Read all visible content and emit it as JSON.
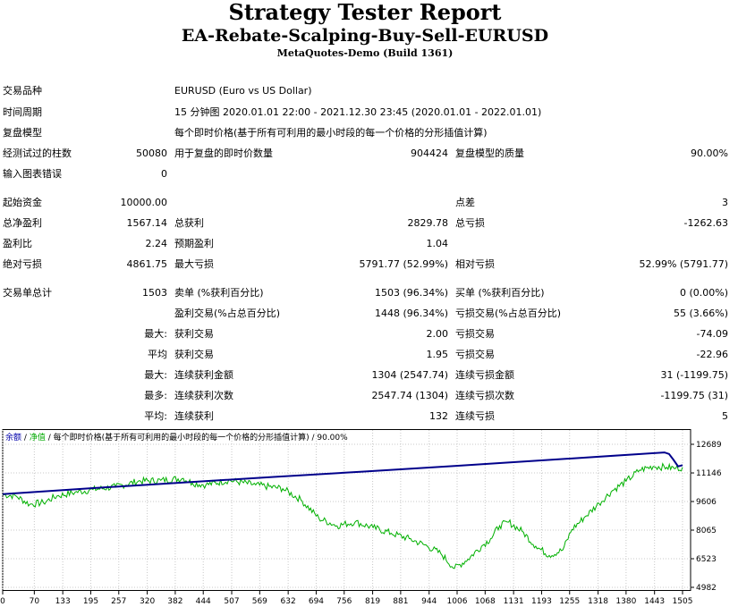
{
  "header": {
    "title": "Strategy Tester Report",
    "ea_name": "EA-Rebate-Scalping-Buy-Sell-EURUSD",
    "server": "MetaQuotes-Demo (Build 1361)"
  },
  "info": {
    "symbol_label": "交易品种",
    "symbol_value": "EURUSD (Euro vs US Dollar)",
    "period_label": "时间周期",
    "period_value": "15 分钟图 2020.01.01 22:00 - 2021.12.30 23:45 (2020.01.01 - 2022.01.01)",
    "model_label": "复盘模型",
    "model_value": "每个即时价格(基于所有可利用的最小时段的每一个价格的分形插值计算)",
    "bars_label": "经测试过的柱数",
    "bars_value": "50080",
    "ticks_label": "用于复盘的即时价数量",
    "ticks_value": "904424",
    "quality_label": "复盘模型的质量",
    "quality_value": "90.00%",
    "errors_label": "输入图表错误",
    "errors_value": "0"
  },
  "stats": {
    "deposit_label": "起始资金",
    "deposit_value": "10000.00",
    "spread_label": "点差",
    "spread_value": "3",
    "net_profit_label": "总净盈利",
    "net_profit_value": "1567.14",
    "gross_profit_label": "总获利",
    "gross_profit_value": "2829.78",
    "gross_loss_label": "总亏损",
    "gross_loss_value": "-1262.63",
    "profit_factor_label": "盈利比",
    "profit_factor_value": "2.24",
    "expected_label": "预期盈利",
    "expected_value": "1.04",
    "abs_dd_label": "绝对亏损",
    "abs_dd_value": "4861.75",
    "max_dd_label": "最大亏损",
    "max_dd_value": "5791.77 (52.99%)",
    "rel_dd_label": "相对亏损",
    "rel_dd_value": "52.99% (5791.77)"
  },
  "trades": {
    "total_label": "交易单总计",
    "total_value": "1503",
    "short_label": "卖单 (%获利百分比)",
    "short_value": "1503 (96.34%)",
    "long_label": "买单 (%获利百分比)",
    "long_value": "0 (0.00%)",
    "profit_trades_label": "盈利交易(%占总百分比)",
    "profit_trades_value": "1448 (96.34%)",
    "loss_trades_label": "亏损交易(%占总百分比)",
    "loss_trades_value": "55 (3.66%)",
    "max_prefix": "最大:",
    "avg_prefix": "平均",
    "max2_prefix": "最大:",
    "most_prefix": "最多:",
    "avg2_prefix": "平均:",
    "max_profit_label": "获利交易",
    "max_profit_value": "2.00",
    "max_loss_label": "亏损交易",
    "max_loss_value": "-74.09",
    "avg_profit_label": "获利交易",
    "avg_profit_value": "1.95",
    "avg_loss_label": "亏损交易",
    "avg_loss_value": "-22.96",
    "max_cons_win_amt_label": "连续获利金额",
    "max_cons_win_amt_value": "1304 (2547.74)",
    "max_cons_loss_amt_label": "连续亏损金额",
    "max_cons_loss_amt_value": "31 (-1199.75)",
    "max_cons_win_cnt_label": "连续获利次数",
    "max_cons_win_cnt_value": "2547.74 (1304)",
    "max_cons_loss_cnt_label": "连续亏损次数",
    "max_cons_loss_cnt_value": "-1199.75 (31)",
    "avg_cons_win_label": "连续获利",
    "avg_cons_win_value": "132",
    "avg_cons_loss_label": "连续亏损",
    "avg_cons_loss_value": "5"
  },
  "chart_data": {
    "type": "line",
    "legend_text": "/ 每个即时价格(基于所有可利用的最小时段的每一个价格的分形插值计算) / 90.00%",
    "legend_series_1": "余额",
    "legend_sep": "/",
    "legend_series_2": "净值",
    "x_ticks": [
      "0",
      "70",
      "133",
      "195",
      "257",
      "320",
      "382",
      "444",
      "507",
      "569",
      "632",
      "694",
      "756",
      "819",
      "881",
      "944",
      "1006",
      "1068",
      "1131",
      "1193",
      "1255",
      "1318",
      "1380",
      "1443",
      "1505"
    ],
    "y_ticks": [
      "12689",
      "11146",
      "9606",
      "8065",
      "6523",
      "4982"
    ],
    "ylim": [
      4982,
      12689
    ],
    "xlim": [
      0,
      1505
    ],
    "colors": {
      "balance": "#00008b",
      "equity": "#00b000",
      "grid": "#c8c8c8"
    },
    "series": [
      {
        "name": "余额",
        "points": [
          [
            0,
            10000
          ],
          [
            200,
            10330
          ],
          [
            400,
            10630
          ],
          [
            600,
            10930
          ],
          [
            800,
            11220
          ],
          [
            1000,
            11520
          ],
          [
            1200,
            11830
          ],
          [
            1400,
            12150
          ],
          [
            1465,
            12250
          ],
          [
            1475,
            12170
          ],
          [
            1485,
            11850
          ],
          [
            1495,
            11500
          ],
          [
            1505,
            11567
          ]
        ]
      },
      {
        "name": "净值",
        "points": [
          [
            0,
            9980
          ],
          [
            30,
            9900
          ],
          [
            60,
            9450
          ],
          [
            90,
            9550
          ],
          [
            120,
            9900
          ],
          [
            160,
            10100
          ],
          [
            200,
            10250
          ],
          [
            250,
            10400
          ],
          [
            300,
            10700
          ],
          [
            350,
            10750
          ],
          [
            400,
            10850
          ],
          [
            420,
            10600
          ],
          [
            450,
            10500
          ],
          [
            500,
            10750
          ],
          [
            560,
            10500
          ],
          [
            620,
            10300
          ],
          [
            660,
            9700
          ],
          [
            700,
            8700
          ],
          [
            740,
            8300
          ],
          [
            780,
            8500
          ],
          [
            820,
            8200
          ],
          [
            860,
            7900
          ],
          [
            900,
            7600
          ],
          [
            940,
            7200
          ],
          [
            970,
            6800
          ],
          [
            1000,
            6000
          ],
          [
            1030,
            6500
          ],
          [
            1060,
            7200
          ],
          [
            1080,
            7600
          ],
          [
            1100,
            8300
          ],
          [
            1120,
            8500
          ],
          [
            1150,
            8000
          ],
          [
            1180,
            7200
          ],
          [
            1210,
            6700
          ],
          [
            1240,
            7000
          ],
          [
            1260,
            8100
          ],
          [
            1290,
            8800
          ],
          [
            1320,
            9500
          ],
          [
            1350,
            10200
          ],
          [
            1380,
            10700
          ],
          [
            1410,
            11300
          ],
          [
            1440,
            11500
          ],
          [
            1470,
            11450
          ],
          [
            1490,
            11400
          ],
          [
            1505,
            11450
          ]
        ]
      }
    ]
  }
}
